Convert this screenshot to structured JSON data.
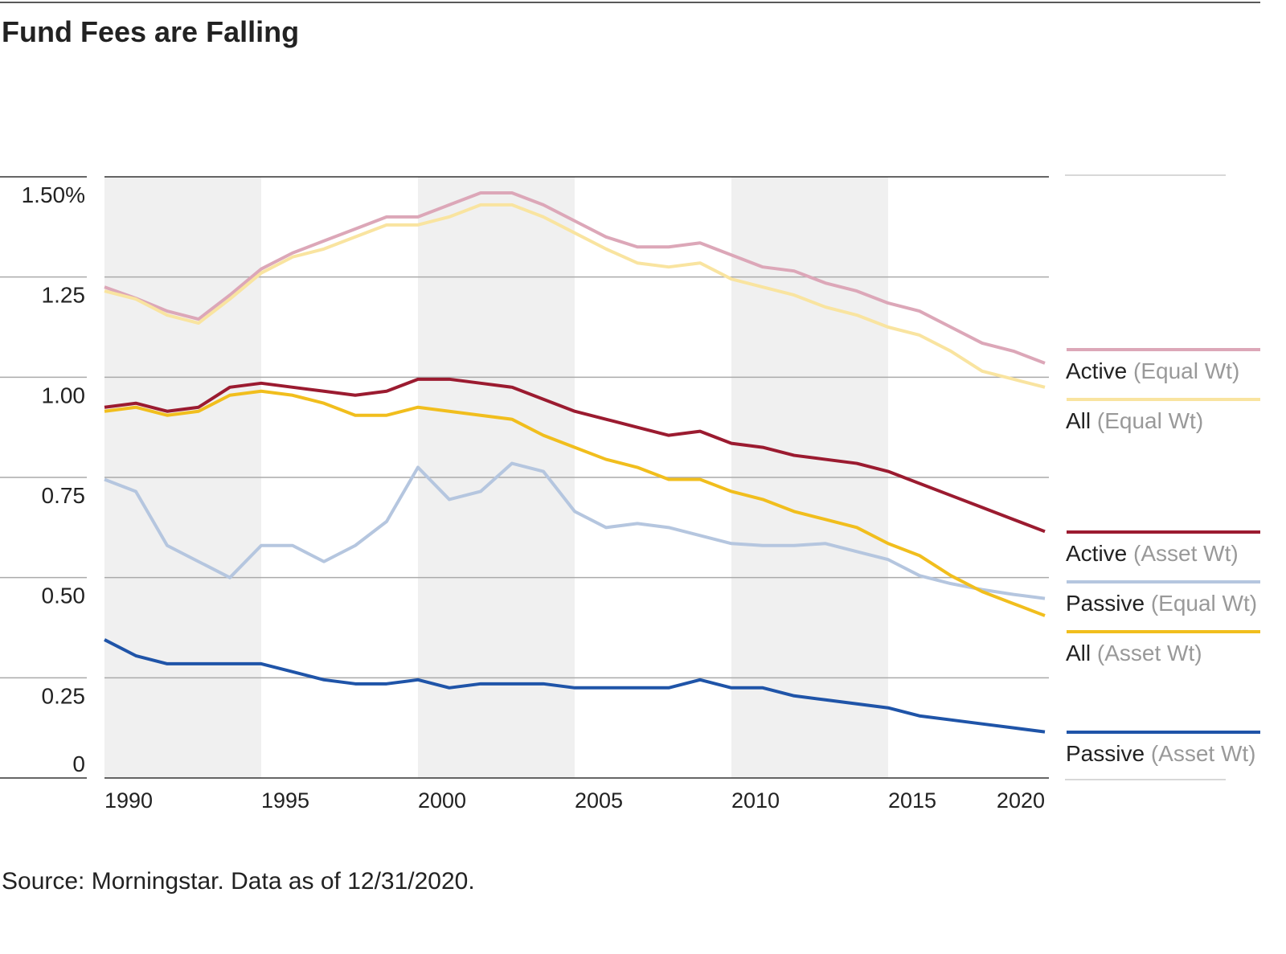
{
  "chart_data": {
    "type": "line",
    "title": "Fund Fees are Falling",
    "source": "Source: Morningstar. Data as of 12/31/2020.",
    "x": [
      1990,
      1991,
      1992,
      1993,
      1994,
      1995,
      1996,
      1997,
      1998,
      1999,
      2000,
      2001,
      2002,
      2003,
      2004,
      2005,
      2006,
      2007,
      2008,
      2009,
      2010,
      2011,
      2012,
      2013,
      2014,
      2015,
      2016,
      2017,
      2018,
      2019,
      2020
    ],
    "xlim": [
      1990,
      2020
    ],
    "xticks": [
      1990,
      1995,
      2000,
      2005,
      2010,
      2015,
      2020
    ],
    "ylim": [
      0,
      1.5
    ],
    "yticks": [
      0,
      0.25,
      {
        "value": 0.5,
        "label": "0.50"
      },
      0.75,
      {
        "value": 1.0,
        "label": "1.00"
      },
      1.25,
      {
        "value": 1.5,
        "label": "1.50%"
      }
    ],
    "grid": true,
    "series": [
      {
        "name": "Active (Equal Wt)",
        "color": "#dca7b8",
        "values": [
          1.225,
          1.197,
          1.165,
          1.145,
          1.205,
          1.27,
          1.31,
          1.34,
          1.37,
          1.4,
          1.4,
          1.43,
          1.46,
          1.46,
          1.43,
          1.39,
          1.35,
          1.325,
          1.325,
          1.335,
          1.305,
          1.275,
          1.265,
          1.235,
          1.215,
          1.185,
          1.165,
          1.125,
          1.085,
          1.065,
          1.035
        ]
      },
      {
        "name": "All (Equal Wt)",
        "color": "#f9e4a0",
        "values": [
          1.215,
          1.195,
          1.155,
          1.135,
          1.195,
          1.26,
          1.3,
          1.32,
          1.35,
          1.38,
          1.38,
          1.4,
          1.43,
          1.43,
          1.4,
          1.36,
          1.32,
          1.285,
          1.275,
          1.285,
          1.245,
          1.225,
          1.205,
          1.175,
          1.155,
          1.125,
          1.105,
          1.065,
          1.015,
          0.995,
          0.975
        ]
      },
      {
        "name": "Active (Asset Wt)",
        "color": "#9b1b30",
        "values": [
          0.925,
          0.935,
          0.915,
          0.925,
          0.975,
          0.985,
          0.975,
          0.965,
          0.955,
          0.965,
          0.995,
          0.995,
          0.985,
          0.975,
          0.945,
          0.915,
          0.895,
          0.875,
          0.855,
          0.865,
          0.835,
          0.825,
          0.805,
          0.795,
          0.785,
          0.765,
          0.735,
          0.705,
          0.675,
          0.645,
          0.615
        ]
      },
      {
        "name": "Passive (Equal Wt)",
        "color": "#b5c6df",
        "values": [
          0.745,
          0.715,
          0.58,
          0.54,
          0.5,
          0.58,
          0.58,
          0.54,
          0.58,
          0.64,
          0.775,
          0.695,
          0.715,
          0.785,
          0.765,
          0.665,
          0.625,
          0.635,
          0.625,
          0.605,
          0.585,
          0.58,
          0.58,
          0.585,
          0.565,
          0.545,
          0.505,
          0.485,
          0.47,
          0.458,
          0.448
        ]
      },
      {
        "name": "All (Asset Wt)",
        "color": "#f1be1d",
        "values": [
          0.915,
          0.925,
          0.905,
          0.915,
          0.955,
          0.965,
          0.955,
          0.935,
          0.905,
          0.905,
          0.925,
          0.915,
          0.905,
          0.895,
          0.855,
          0.825,
          0.795,
          0.775,
          0.745,
          0.745,
          0.715,
          0.695,
          0.665,
          0.645,
          0.625,
          0.585,
          0.555,
          0.505,
          0.465,
          0.435,
          0.405
        ]
      },
      {
        "name": "Passive (Asset Wt)",
        "color": "#1f54a8",
        "values": [
          0.345,
          0.305,
          0.285,
          0.285,
          0.285,
          0.285,
          0.265,
          0.245,
          0.235,
          0.235,
          0.245,
          0.225,
          0.235,
          0.235,
          0.235,
          0.225,
          0.225,
          0.225,
          0.225,
          0.245,
          0.225,
          0.225,
          0.205,
          0.195,
          0.185,
          0.175,
          0.155,
          0.145,
          0.135,
          0.125,
          0.115
        ]
      }
    ]
  }
}
